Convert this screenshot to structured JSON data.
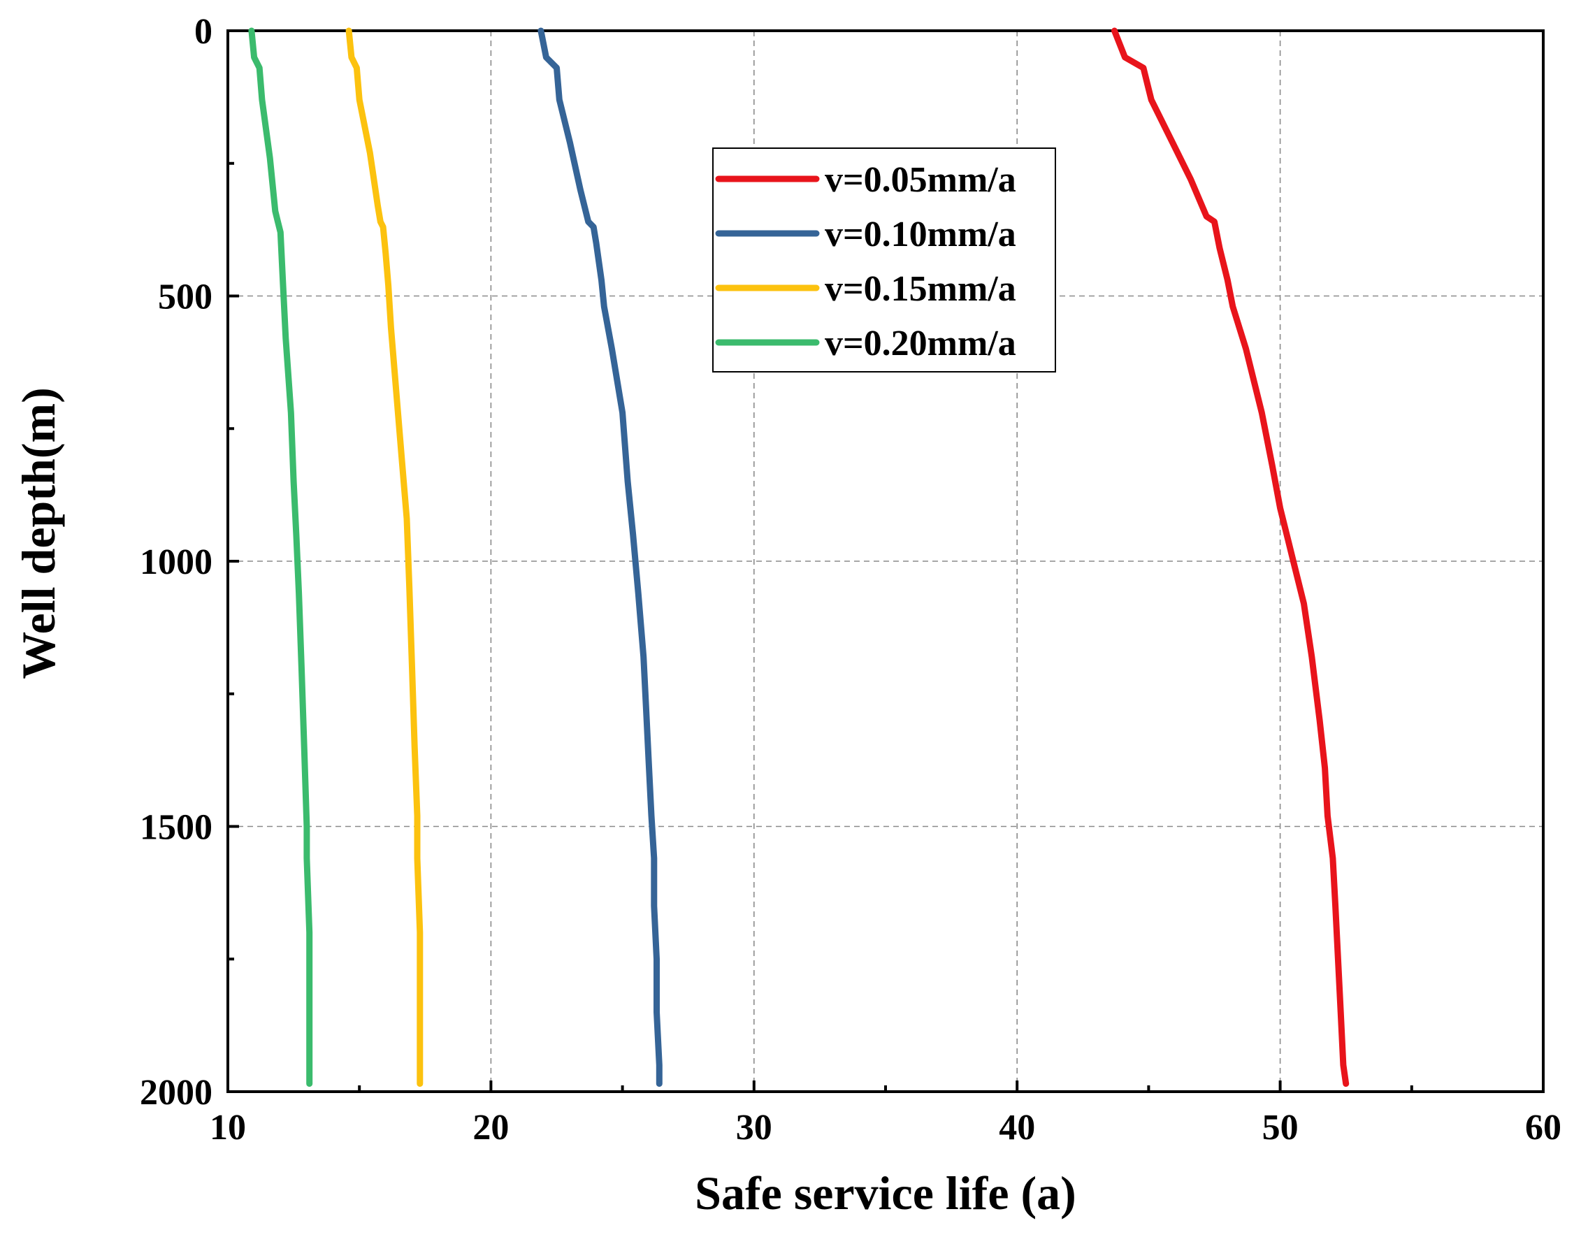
{
  "chart_data": {
    "type": "line",
    "title": "",
    "xlabel": "Safe service life (a)",
    "ylabel": "Well depth(m)",
    "xlim": [
      10,
      60
    ],
    "ylim": [
      2000,
      0
    ],
    "y_inverted": true,
    "x_ticks": [
      "10",
      "20",
      "30",
      "40",
      "50",
      "60"
    ],
    "y_ticks": [
      "0",
      "500",
      "1000",
      "1500",
      "2000"
    ],
    "grid": true,
    "legend_position": "upper-center",
    "series": [
      {
        "name": "v=0.05mm/a",
        "color": "#e8141b",
        "points": [
          [
            43.7,
            0
          ],
          [
            44.1,
            50
          ],
          [
            44.8,
            70
          ],
          [
            45.1,
            130
          ],
          [
            45.9,
            210
          ],
          [
            46.6,
            280
          ],
          [
            47.2,
            350
          ],
          [
            47.5,
            360
          ],
          [
            47.7,
            410
          ],
          [
            48.0,
            470
          ],
          [
            48.2,
            520
          ],
          [
            48.7,
            600
          ],
          [
            49.3,
            720
          ],
          [
            49.7,
            820
          ],
          [
            50.0,
            900
          ],
          [
            50.3,
            960
          ],
          [
            50.5,
            1000
          ],
          [
            50.9,
            1080
          ],
          [
            51.2,
            1180
          ],
          [
            51.5,
            1300
          ],
          [
            51.7,
            1390
          ],
          [
            51.8,
            1480
          ],
          [
            52.0,
            1560
          ],
          [
            52.1,
            1650
          ],
          [
            52.2,
            1750
          ],
          [
            52.3,
            1850
          ],
          [
            52.4,
            1950
          ],
          [
            52.5,
            1985
          ]
        ]
      },
      {
        "name": "v=0.10mm/a",
        "color": "#356497",
        "points": [
          [
            21.9,
            0
          ],
          [
            22.1,
            50
          ],
          [
            22.5,
            70
          ],
          [
            22.6,
            130
          ],
          [
            23.0,
            210
          ],
          [
            23.4,
            300
          ],
          [
            23.7,
            360
          ],
          [
            23.9,
            370
          ],
          [
            24.0,
            400
          ],
          [
            24.2,
            470
          ],
          [
            24.3,
            520
          ],
          [
            24.6,
            600
          ],
          [
            25.0,
            720
          ],
          [
            25.2,
            850
          ],
          [
            25.4,
            950
          ],
          [
            25.6,
            1060
          ],
          [
            25.8,
            1180
          ],
          [
            25.9,
            1280
          ],
          [
            26.0,
            1380
          ],
          [
            26.1,
            1480
          ],
          [
            26.2,
            1560
          ],
          [
            26.2,
            1650
          ],
          [
            26.3,
            1750
          ],
          [
            26.3,
            1850
          ],
          [
            26.4,
            1950
          ],
          [
            26.4,
            1985
          ]
        ]
      },
      {
        "name": "v=0.15mm/a",
        "color": "#fcc20f",
        "points": [
          [
            14.6,
            0
          ],
          [
            14.7,
            50
          ],
          [
            14.9,
            70
          ],
          [
            15.0,
            130
          ],
          [
            15.4,
            230
          ],
          [
            15.7,
            330
          ],
          [
            15.8,
            360
          ],
          [
            15.9,
            370
          ],
          [
            16.0,
            420
          ],
          [
            16.1,
            480
          ],
          [
            16.2,
            560
          ],
          [
            16.4,
            680
          ],
          [
            16.6,
            800
          ],
          [
            16.8,
            920
          ],
          [
            16.9,
            1050
          ],
          [
            17.0,
            1200
          ],
          [
            17.1,
            1350
          ],
          [
            17.2,
            1480
          ],
          [
            17.2,
            1560
          ],
          [
            17.3,
            1700
          ],
          [
            17.3,
            1850
          ],
          [
            17.3,
            1985
          ]
        ]
      },
      {
        "name": "v=0.20mm/a",
        "color": "#3bbb6d",
        "points": [
          [
            10.9,
            0
          ],
          [
            11.0,
            50
          ],
          [
            11.2,
            70
          ],
          [
            11.3,
            130
          ],
          [
            11.6,
            240
          ],
          [
            11.8,
            340
          ],
          [
            11.9,
            360
          ],
          [
            12.0,
            380
          ],
          [
            12.1,
            480
          ],
          [
            12.2,
            580
          ],
          [
            12.4,
            720
          ],
          [
            12.5,
            850
          ],
          [
            12.6,
            950
          ],
          [
            12.7,
            1060
          ],
          [
            12.8,
            1200
          ],
          [
            12.9,
            1350
          ],
          [
            13.0,
            1500
          ],
          [
            13.0,
            1560
          ],
          [
            13.1,
            1700
          ],
          [
            13.1,
            1850
          ],
          [
            13.1,
            1985
          ]
        ]
      }
    ]
  }
}
